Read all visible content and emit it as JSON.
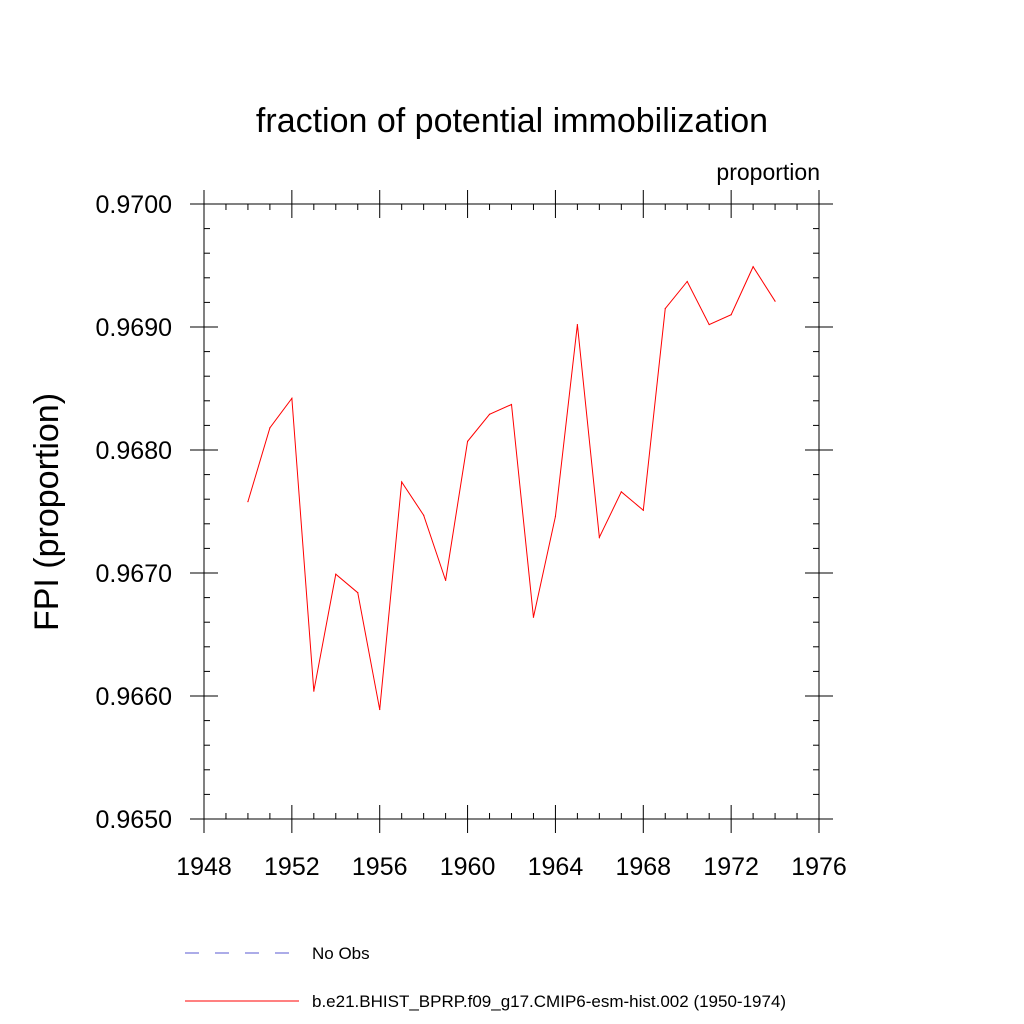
{
  "chart_data": {
    "type": "line",
    "title": "fraction of potential immobilization",
    "subtitle_right": "proportion",
    "xlabel": "",
    "ylabel": "FPI  (proportion)",
    "xlim": [
      1948,
      1976
    ],
    "ylim": [
      0.965,
      0.97
    ],
    "x_ticks": [
      "1948",
      "1952",
      "1956",
      "1960",
      "1964",
      "1968",
      "1972",
      "1976"
    ],
    "y_ticks": [
      "0.9650",
      "0.9660",
      "0.9670",
      "0.9680",
      "0.9690",
      "0.9700"
    ],
    "grid": false,
    "legend_position": "bottom",
    "series": [
      {
        "name": "No Obs",
        "color": "#5a5ad2",
        "dash": "dashed",
        "x": [],
        "values": []
      },
      {
        "name": "b.e21.BHIST_BPRP.f09_g17.CMIP6-esm-hist.002 (1950-1974)",
        "color": "#ff0000",
        "dash": "solid",
        "x": [
          1950,
          1951,
          1952,
          1953,
          1954,
          1955,
          1956,
          1957,
          1958,
          1959,
          1960,
          1961,
          1962,
          1963,
          1964,
          1965,
          1966,
          1967,
          1968,
          1969,
          1970,
          1971,
          1972,
          1973,
          1974
        ],
        "values": [
          0.96758,
          0.96818,
          0.96842,
          0.96604,
          0.96699,
          0.96684,
          0.96589,
          0.96774,
          0.96747,
          0.96694,
          0.96807,
          0.96829,
          0.96837,
          0.96664,
          0.96746,
          0.96902,
          0.96729,
          0.96766,
          0.96751,
          0.96915,
          0.96937,
          0.96902,
          0.9691,
          0.96949,
          0.96921
        ]
      }
    ]
  }
}
